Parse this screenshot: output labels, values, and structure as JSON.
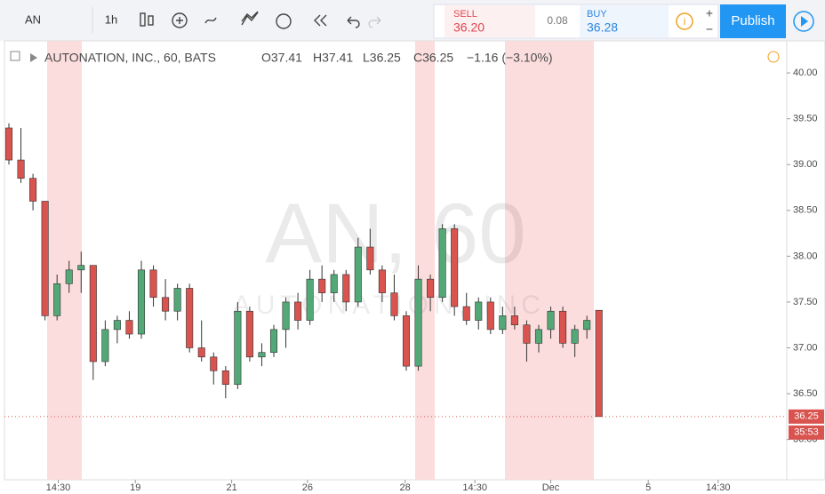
{
  "toolbar": {
    "symbol": "AN",
    "interval": "1h",
    "sell_label": "SELL",
    "sell_price": "36.20",
    "spread": "0.08",
    "buy_label": "BUY",
    "buy_price": "36.28",
    "publish": "Publish"
  },
  "legend": {
    "name": "AUTONATION, INC., 60, BATS",
    "open": "O37.41",
    "high": "H37.41",
    "low": "L36.25",
    "close": "C36.25",
    "change": "−1.16 (−3.10%)"
  },
  "watermark": {
    "symbol": "AN, 60",
    "name": "AUTONATION, INC."
  },
  "chart_data": {
    "type": "candlestick",
    "x": [
      0,
      1,
      2,
      3,
      4,
      5,
      6,
      7,
      8,
      9,
      10,
      11,
      12,
      13,
      14,
      15,
      16,
      17,
      18,
      19,
      20,
      21,
      22,
      23,
      24,
      25,
      26,
      27,
      28,
      29,
      30,
      31,
      32,
      33,
      34,
      35,
      36,
      37,
      38,
      39,
      40,
      41,
      42,
      43,
      44,
      45,
      46,
      47,
      48,
      49
    ],
    "open": [
      39.4,
      39.05,
      38.85,
      38.6,
      37.35,
      37.7,
      37.85,
      37.9,
      36.85,
      37.2,
      37.3,
      37.15,
      37.85,
      37.55,
      37.4,
      37.65,
      37.0,
      36.9,
      36.75,
      36.6,
      37.4,
      36.9,
      36.95,
      37.2,
      37.5,
      37.3,
      37.75,
      37.6,
      37.8,
      37.5,
      38.1,
      37.85,
      37.6,
      37.35,
      36.8,
      37.75,
      37.55,
      38.3,
      37.45,
      37.3,
      37.5,
      37.2,
      37.35,
      37.25,
      37.05,
      37.2,
      37.4,
      37.05,
      37.2,
      37.41
    ],
    "high": [
      39.45,
      39.4,
      38.9,
      38.6,
      37.8,
      37.95,
      38.05,
      37.9,
      37.3,
      37.35,
      37.4,
      37.95,
      37.9,
      37.75,
      37.7,
      37.7,
      37.3,
      36.95,
      36.8,
      37.5,
      37.45,
      37.05,
      37.25,
      37.55,
      37.6,
      37.85,
      37.9,
      37.85,
      37.85,
      38.2,
      38.3,
      37.9,
      37.8,
      37.4,
      37.9,
      37.8,
      38.35,
      38.35,
      37.6,
      37.55,
      37.55,
      37.45,
      37.45,
      37.3,
      37.25,
      37.45,
      37.45,
      37.25,
      37.35,
      37.41
    ],
    "low": [
      39.0,
      38.8,
      38.5,
      37.3,
      37.3,
      37.6,
      37.6,
      36.65,
      36.8,
      37.05,
      37.1,
      37.1,
      37.45,
      37.3,
      37.3,
      36.95,
      36.85,
      36.6,
      36.45,
      36.55,
      36.85,
      36.8,
      36.9,
      37.0,
      37.2,
      37.25,
      37.5,
      37.5,
      37.4,
      37.45,
      37.8,
      37.5,
      37.3,
      36.75,
      36.75,
      37.4,
      37.5,
      37.35,
      37.25,
      37.2,
      37.15,
      37.15,
      37.2,
      36.85,
      36.95,
      37.1,
      37.0,
      36.9,
      37.1,
      36.25
    ],
    "close": [
      39.05,
      38.85,
      38.6,
      37.35,
      37.7,
      37.85,
      37.9,
      36.85,
      37.2,
      37.3,
      37.15,
      37.85,
      37.55,
      37.4,
      37.65,
      37.0,
      36.9,
      36.75,
      36.6,
      37.4,
      36.9,
      36.95,
      37.2,
      37.5,
      37.3,
      37.75,
      37.6,
      37.8,
      37.5,
      38.1,
      37.85,
      37.6,
      37.35,
      36.8,
      37.75,
      37.55,
      38.3,
      37.45,
      37.3,
      37.5,
      37.2,
      37.35,
      37.25,
      37.05,
      37.2,
      37.4,
      37.05,
      37.2,
      37.3,
      36.25
    ],
    "up_color": "#53a877",
    "down_color": "#d9534f",
    "xlim": [
      -0.37,
      64.6
    ],
    "xticks": [
      {
        "value": 4.1,
        "label": "14:30"
      },
      {
        "value": 10.5,
        "label": "19"
      },
      {
        "value": 18.5,
        "label": "21"
      },
      {
        "value": 24.8,
        "label": "26"
      },
      {
        "value": 32.9,
        "label": "28"
      },
      {
        "value": 38.7,
        "label": "14:30"
      },
      {
        "value": 45.0,
        "label": "Dec"
      },
      {
        "value": 53.1,
        "label": "5"
      },
      {
        "value": 58.9,
        "label": "14:30"
      }
    ],
    "ylim": [
      35.56,
      40.35
    ],
    "yticks": [
      {
        "value": 40,
        "label": "40.00"
      },
      {
        "value": 39.5,
        "label": "39.50"
      },
      {
        "value": 39,
        "label": "39.00"
      },
      {
        "value": 38.5,
        "label": "38.50"
      },
      {
        "value": 38,
        "label": "38.00"
      },
      {
        "value": 37.5,
        "label": "37.50"
      },
      {
        "value": 37,
        "label": "37.00"
      },
      {
        "value": 36.5,
        "label": "36.50"
      },
      {
        "value": 36,
        "label": "36.00"
      }
    ],
    "last_price": 36.25,
    "countdown": "35:53",
    "grid": false
  }
}
